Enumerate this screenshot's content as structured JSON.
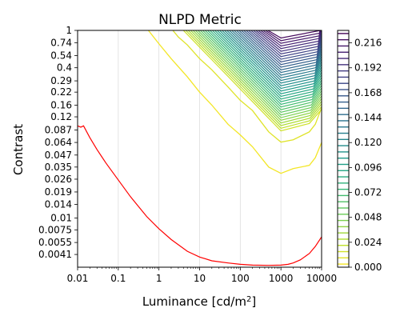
{
  "chart_data": {
    "type": "contour",
    "title": "NLPD Metric",
    "xlabel": "Luminance [cd/m",
    "xlabel_sup": "2",
    "xlabel_end": "]",
    "ylabel": "Contrast",
    "x_scale": "log",
    "y_scale": "log",
    "xlim": [
      0.01,
      10000
    ],
    "ylim": [
      0.003,
      1
    ],
    "x_ticks": [
      {
        "value": 0.01,
        "label": "0.01"
      },
      {
        "value": 0.1,
        "label": "0.1"
      },
      {
        "value": 1,
        "label": "1"
      },
      {
        "value": 10,
        "label": "10"
      },
      {
        "value": 100,
        "label": "100"
      },
      {
        "value": 1000,
        "label": "1000"
      },
      {
        "value": 10000,
        "label": "10000"
      }
    ],
    "y_ticks": [
      {
        "value": 1,
        "label": "1"
      },
      {
        "value": 0.74,
        "label": "0.74"
      },
      {
        "value": 0.54,
        "label": "0.54"
      },
      {
        "value": 0.4,
        "label": "0.4"
      },
      {
        "value": 0.29,
        "label": "0.29"
      },
      {
        "value": 0.22,
        "label": "0.22"
      },
      {
        "value": 0.16,
        "label": "0.16"
      },
      {
        "value": 0.12,
        "label": "0.12"
      },
      {
        "value": 0.087,
        "label": "0.087"
      },
      {
        "value": 0.064,
        "label": "0.064"
      },
      {
        "value": 0.047,
        "label": "0.047"
      },
      {
        "value": 0.035,
        "label": "0.035"
      },
      {
        "value": 0.026,
        "label": "0.026"
      },
      {
        "value": 0.019,
        "label": "0.019"
      },
      {
        "value": 0.014,
        "label": "0.014"
      },
      {
        "value": 0.01,
        "label": "0.01"
      },
      {
        "value": 0.0075,
        "label": "0.0075"
      },
      {
        "value": 0.0055,
        "label": "0.0055"
      },
      {
        "value": 0.0041,
        "label": "0.0041"
      }
    ],
    "grid": "vertical",
    "colorbar": {
      "position": "right",
      "range": [
        0,
        0.228
      ],
      "level_step": 0.006,
      "tick_labels": [
        "0.000",
        "0.024",
        "0.048",
        "0.072",
        "0.096",
        "0.120",
        "0.144",
        "0.168",
        "0.192",
        "0.216"
      ],
      "colormap": "viridis"
    },
    "threshold_curve": {
      "color": "#ff0000",
      "points": [
        [
          0.01,
          0.0962
        ],
        [
          0.012,
          0.0932
        ],
        [
          0.014,
          0.0962
        ],
        [
          0.02,
          0.072
        ],
        [
          0.03,
          0.0538
        ],
        [
          0.05,
          0.0385
        ],
        [
          0.1,
          0.0255
        ],
        [
          0.2,
          0.0169
        ],
        [
          0.5,
          0.0104
        ],
        [
          1,
          0.0077
        ],
        [
          2,
          0.00592
        ],
        [
          5,
          0.00443
        ],
        [
          10,
          0.00385
        ],
        [
          20,
          0.00351
        ],
        [
          50,
          0.00333
        ],
        [
          100,
          0.00322
        ],
        [
          200,
          0.00316
        ],
        [
          500,
          0.00314
        ],
        [
          1000,
          0.00316
        ],
        [
          1500,
          0.00322
        ],
        [
          2000,
          0.00333
        ],
        [
          3000,
          0.00359
        ],
        [
          5000,
          0.0042
        ],
        [
          7000,
          0.00499
        ],
        [
          10000,
          0.00631
        ]
      ]
    },
    "contours": {
      "count": 38,
      "first_level_points": [
        [
          0.55,
          1
        ],
        [
          1,
          0.72
        ],
        [
          2,
          0.5
        ],
        [
          5,
          0.32
        ],
        [
          10,
          0.22
        ],
        [
          20,
          0.16
        ],
        [
          50,
          0.1
        ],
        [
          100,
          0.077
        ],
        [
          200,
          0.0575
        ],
        [
          500,
          0.035
        ],
        [
          1000,
          0.03
        ],
        [
          2000,
          0.0337
        ],
        [
          5000,
          0.0365
        ],
        [
          7000,
          0.044
        ],
        [
          10000,
          0.064
        ]
      ],
      "second_level_points": [
        [
          2.2,
          1
        ],
        [
          3,
          0.85
        ],
        [
          5,
          0.7
        ],
        [
          10,
          0.5
        ],
        [
          20,
          0.38
        ],
        [
          50,
          0.25
        ],
        [
          100,
          0.18
        ],
        [
          200,
          0.14
        ],
        [
          500,
          0.083
        ],
        [
          1000,
          0.0645
        ],
        [
          2000,
          0.0683
        ],
        [
          5000,
          0.083
        ],
        [
          7000,
          0.1
        ],
        [
          10000,
          0.15
        ]
      ],
      "valley_luminance": 1000,
      "valley_contrast_start": 0.085,
      "valley_contrast_end": 0.83,
      "left_x_start": 4,
      "left_x_end": 480,
      "right_x_start": 5000,
      "right_x_end": 9000
    }
  }
}
